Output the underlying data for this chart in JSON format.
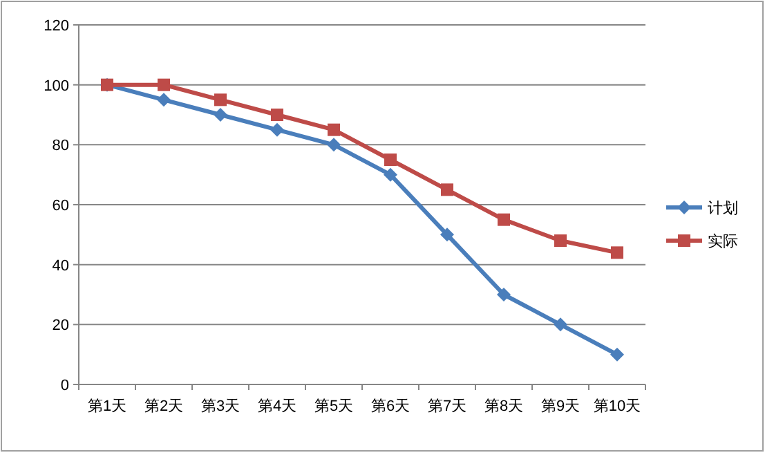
{
  "chart_data": {
    "type": "line",
    "categories": [
      "第1天",
      "第2天",
      "第3天",
      "第4天",
      "第5天",
      "第6天",
      "第7天",
      "第8天",
      "第9天",
      "第10天"
    ],
    "series": [
      {
        "name": "计划",
        "color": "#4a7ebb",
        "marker": "diamond",
        "values": [
          100,
          95,
          90,
          85,
          80,
          70,
          50,
          30,
          20,
          10
        ]
      },
      {
        "name": "实际",
        "color": "#be4b48",
        "marker": "square",
        "values": [
          100,
          100,
          95,
          90,
          85,
          75,
          65,
          55,
          48,
          44
        ]
      }
    ],
    "ylim": [
      0,
      120
    ],
    "yticks": [
      0,
      20,
      40,
      60,
      80,
      100,
      120
    ],
    "grid": "y",
    "legend": "right"
  }
}
